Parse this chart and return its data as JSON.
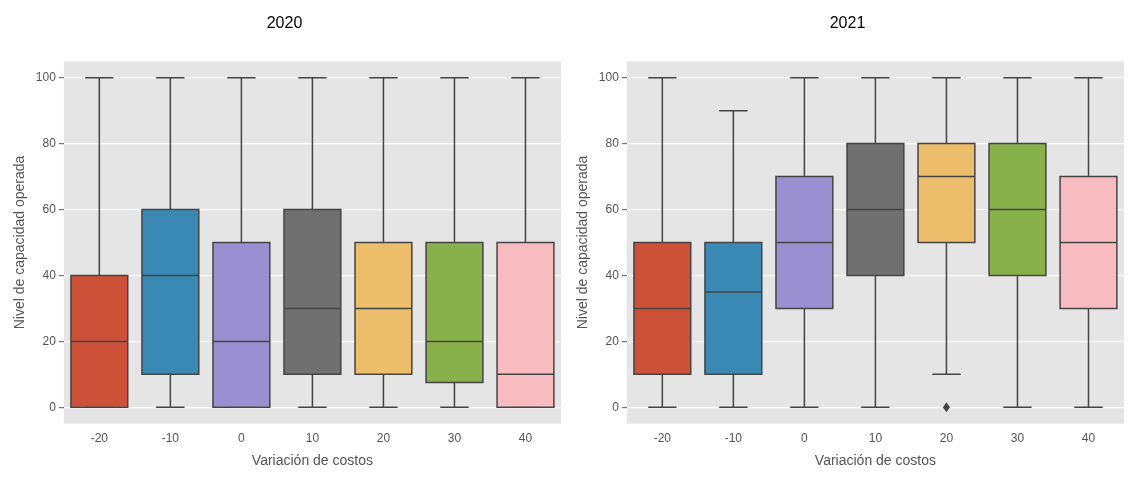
{
  "chart_data": [
    {
      "type": "box",
      "title": "2020",
      "xlabel": "Variación de costos",
      "ylabel": "Nivel de capacidad operada",
      "categories": [
        "-20",
        "-10",
        "0",
        "10",
        "20",
        "30",
        "40"
      ],
      "colors": [
        "#cc5138",
        "#3a88b4",
        "#9a8fd0",
        "#707070",
        "#ecbd6a",
        "#88b04b",
        "#f8bcc0"
      ],
      "boxes": [
        {
          "low": 0,
          "q1": 0,
          "median": 20,
          "q3": 40,
          "high": 100
        },
        {
          "low": 0,
          "q1": 10,
          "median": 40,
          "q3": 60,
          "high": 100
        },
        {
          "low": 0,
          "q1": 0,
          "median": 20,
          "q3": 50,
          "high": 100
        },
        {
          "low": 0,
          "q1": 10,
          "median": 30,
          "q3": 60,
          "high": 100
        },
        {
          "low": 0,
          "q1": 10,
          "median": 30,
          "q3": 50,
          "high": 100
        },
        {
          "low": 0,
          "q1": 7.5,
          "median": 20,
          "q3": 50,
          "high": 100
        },
        {
          "low": 0,
          "q1": 0,
          "median": 10,
          "q3": 50,
          "high": 100
        }
      ],
      "ylim": [
        -5,
        105
      ],
      "yticks": [
        0,
        20,
        40,
        60,
        80,
        100
      ],
      "grid": "y"
    },
    {
      "type": "box",
      "title": "2021",
      "xlabel": "Variación de costos",
      "ylabel": "Nivel de capacidad operada",
      "categories": [
        "-20",
        "-10",
        "0",
        "10",
        "20",
        "30",
        "40"
      ],
      "colors": [
        "#cc5138",
        "#3a88b4",
        "#9a8fd0",
        "#707070",
        "#ecbd6a",
        "#88b04b",
        "#f8bcc0"
      ],
      "boxes": [
        {
          "low": 0,
          "q1": 10,
          "median": 30,
          "q3": 50,
          "high": 100
        },
        {
          "low": 0,
          "q1": 10,
          "median": 35,
          "q3": 50,
          "high": 90
        },
        {
          "low": 0,
          "q1": 30,
          "median": 50,
          "q3": 70,
          "high": 100
        },
        {
          "low": 0,
          "q1": 40,
          "median": 60,
          "q3": 80,
          "high": 100
        },
        {
          "low": 10,
          "q1": 50,
          "median": 70,
          "q3": 80,
          "high": 100,
          "outliers": [
            0
          ]
        },
        {
          "low": 0,
          "q1": 40,
          "median": 60,
          "q3": 80,
          "high": 100
        },
        {
          "low": 0,
          "q1": 30,
          "median": 50,
          "q3": 70,
          "high": 100
        }
      ],
      "ylim": [
        -5,
        105
      ],
      "yticks": [
        0,
        20,
        40,
        60,
        80,
        100
      ],
      "grid": "y"
    }
  ]
}
